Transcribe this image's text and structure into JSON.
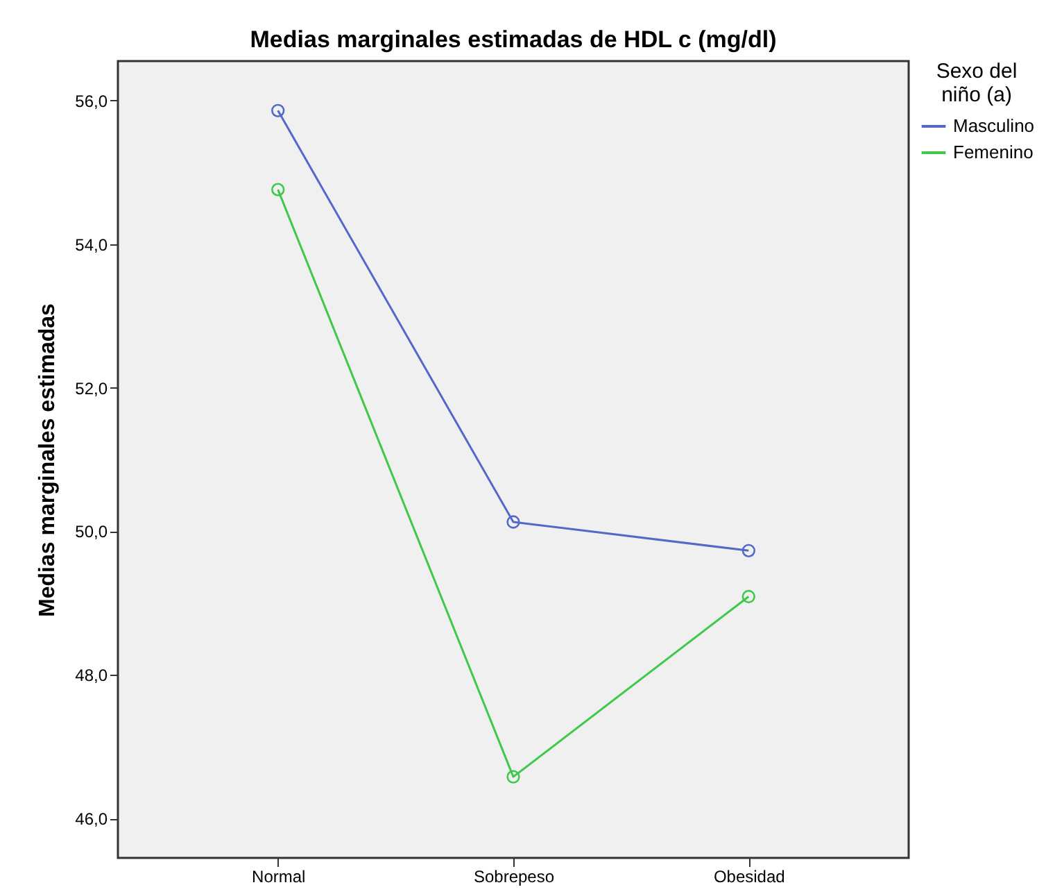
{
  "chart_data": {
    "type": "line",
    "title": "Medias marginales estimadas de HDL c (mg/dl)",
    "ylabel": "Medias marginales estimadas",
    "legend_title": "Sexo del niño (a)",
    "categories": [
      "Normal",
      "Sobrepeso",
      "Obesidad"
    ],
    "series": [
      {
        "name": "Masculino",
        "color": "#5468c8",
        "values": [
          55.86,
          50.13,
          49.73
        ]
      },
      {
        "name": "Femenino",
        "color": "#3ec94a",
        "values": [
          54.76,
          46.58,
          49.09
        ]
      }
    ],
    "ylim": [
      45.45,
      56.55
    ],
    "yticks": [
      {
        "value": 46,
        "label": "46,0"
      },
      {
        "value": 48,
        "label": "48,0"
      },
      {
        "value": 50,
        "label": "50,0"
      },
      {
        "value": 52,
        "label": "52,0"
      },
      {
        "value": 54,
        "label": "54,0"
      },
      {
        "value": 56,
        "label": "56,0"
      }
    ],
    "grid": false,
    "legend": "top right",
    "marker": "circle",
    "line_style": "solid"
  }
}
